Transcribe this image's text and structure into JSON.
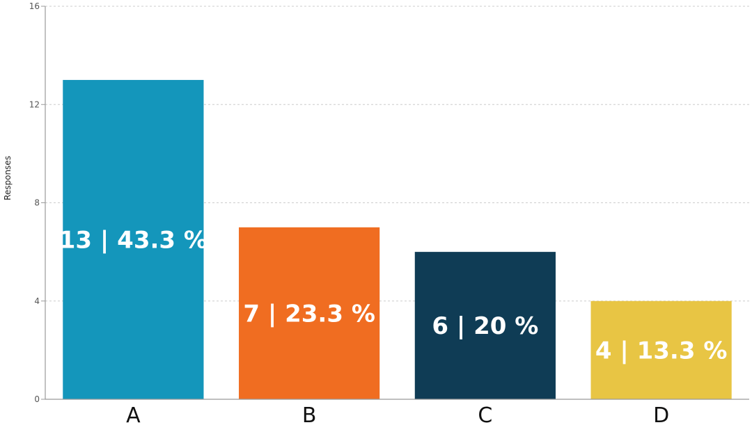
{
  "chart_data": {
    "type": "bar",
    "categories": [
      "A",
      "B",
      "C",
      "D"
    ],
    "values": [
      13,
      7,
      6,
      4
    ],
    "percentages": [
      "43.3 %",
      "23.3 %",
      "20 %",
      "13.3 %"
    ],
    "data_labels": [
      "13 | 43.3 %",
      "7 | 23.3 %",
      "6 | 20 %",
      "4 | 13.3 %"
    ],
    "colors": [
      "#1496BB",
      "#F06D21",
      "#0F3C55",
      "#E8C544"
    ],
    "title": "",
    "xlabel": "",
    "ylabel": "Responses",
    "ylim": [
      0,
      16
    ],
    "yticks": [
      0,
      4,
      8,
      12,
      16
    ],
    "grid": true
  }
}
